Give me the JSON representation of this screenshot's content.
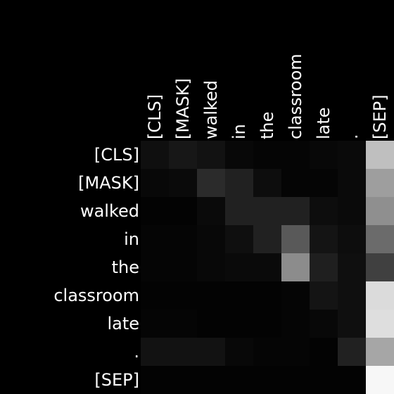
{
  "chart_data": {
    "type": "heatmap",
    "x_labels": [
      "[CLS]",
      "[MASK]",
      "walked",
      "in",
      "the",
      "classroom",
      "late",
      ".",
      "[SEP]"
    ],
    "y_labels": [
      "[CLS]",
      "[MASK]",
      "walked",
      "in",
      "the",
      "classroom",
      "late",
      ".",
      "[SEP]"
    ],
    "colormap": "grayscale (black = 0, white = 1)",
    "value_range": [
      0,
      1
    ],
    "values": [
      [
        0.06,
        0.09,
        0.07,
        0.03,
        0.02,
        0.02,
        0.03,
        0.04,
        0.75
      ],
      [
        0.03,
        0.04,
        0.17,
        0.13,
        0.05,
        0.02,
        0.02,
        0.04,
        0.62
      ],
      [
        0.01,
        0.01,
        0.04,
        0.13,
        0.13,
        0.13,
        0.05,
        0.04,
        0.56
      ],
      [
        0.02,
        0.02,
        0.03,
        0.06,
        0.13,
        0.35,
        0.08,
        0.05,
        0.42
      ],
      [
        0.02,
        0.02,
        0.03,
        0.04,
        0.04,
        0.55,
        0.12,
        0.06,
        0.25
      ],
      [
        0.01,
        0.01,
        0.01,
        0.01,
        0.01,
        0.02,
        0.08,
        0.06,
        0.86
      ],
      [
        0.02,
        0.02,
        0.01,
        0.01,
        0.01,
        0.02,
        0.03,
        0.06,
        0.87
      ],
      [
        0.07,
        0.07,
        0.07,
        0.03,
        0.02,
        0.02,
        0.01,
        0.13,
        0.65
      ],
      [
        0.01,
        0.01,
        0.01,
        0.01,
        0.01,
        0.01,
        0.01,
        0.01,
        0.97
      ]
    ],
    "grid": false,
    "legend": "none"
  }
}
